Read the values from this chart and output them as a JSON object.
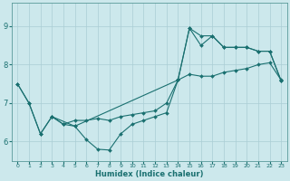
{
  "xlabel": "Humidex (Indice chaleur)",
  "xlim": [
    -0.5,
    23.5
  ],
  "ylim": [
    5.5,
    9.6
  ],
  "yticks": [
    6,
    7,
    8,
    9
  ],
  "xticks": [
    0,
    1,
    2,
    3,
    4,
    5,
    6,
    7,
    8,
    9,
    10,
    11,
    12,
    13,
    14,
    15,
    16,
    17,
    18,
    19,
    20,
    21,
    22,
    23
  ],
  "background_color": "#cce8ec",
  "grid_color": "#aacdd4",
  "line_color": "#1a7070",
  "line1_x": [
    0,
    1,
    2,
    3,
    4,
    5,
    6,
    7,
    8,
    9,
    10,
    11,
    12,
    13,
    14,
    15,
    16,
    17,
    18,
    19,
    20,
    21,
    22,
    23
  ],
  "line1_y": [
    7.5,
    7.0,
    6.2,
    6.65,
    6.45,
    6.55,
    6.55,
    6.6,
    6.55,
    6.65,
    6.7,
    6.75,
    6.8,
    7.0,
    7.6,
    7.75,
    7.7,
    7.7,
    7.8,
    7.85,
    7.9,
    8.0,
    8.05,
    7.6
  ],
  "line2_x": [
    0,
    1,
    2,
    3,
    4,
    5,
    6,
    7,
    8,
    9,
    10,
    11,
    12,
    13,
    14,
    15,
    16,
    17,
    18,
    19,
    20,
    21,
    22,
    23
  ],
  "line2_y": [
    7.5,
    7.0,
    6.2,
    6.65,
    6.45,
    6.4,
    6.05,
    5.8,
    5.78,
    6.2,
    6.45,
    6.55,
    6.65,
    6.75,
    7.6,
    8.95,
    8.5,
    8.75,
    8.45,
    8.45,
    8.45,
    8.35,
    8.35,
    7.58
  ],
  "line3_x": [
    3,
    5,
    14,
    15,
    16,
    17,
    18,
    19,
    20,
    21,
    22,
    23
  ],
  "line3_y": [
    6.65,
    6.4,
    7.6,
    8.95,
    8.75,
    8.75,
    8.45,
    8.45,
    8.45,
    8.35,
    8.35,
    7.58
  ]
}
